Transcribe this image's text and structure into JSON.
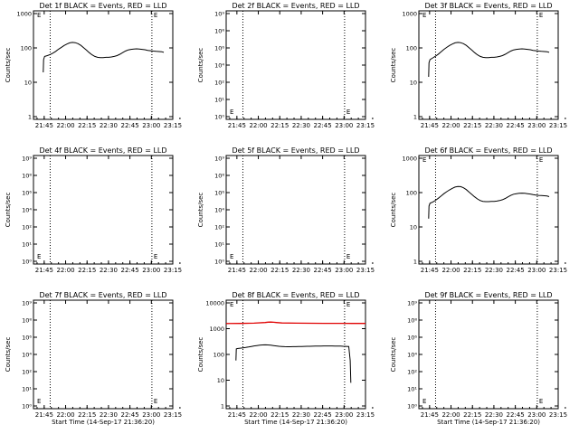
{
  "chart_data": [
    {
      "type": "line",
      "title": "Det 1f BLACK = Events, RED = LLD",
      "ylabel": "Counts/sec",
      "xlabel": "",
      "scale": "log",
      "ylim": [
        1,
        1000
      ],
      "ytick_labels": [
        "1000",
        "100",
        "10",
        "1"
      ],
      "xticks": [
        "21:45",
        "22:00",
        "22:15",
        "22:30",
        "22:45",
        "23:00",
        "23:15"
      ],
      "xlim": [
        0,
        100
      ],
      "markers": [
        12,
        85
      ],
      "tag": "E",
      "series": [
        {
          "color": "black",
          "x": [
            7,
            7.3,
            8,
            10,
            12,
            14,
            16,
            18,
            20,
            22,
            24,
            26,
            28,
            30,
            32,
            34,
            36,
            38,
            40,
            42,
            44,
            46,
            48,
            50,
            52,
            54,
            56,
            58,
            60,
            62,
            64,
            66,
            68,
            70,
            72,
            74,
            76,
            78,
            80,
            82,
            84,
            86,
            88,
            90,
            92,
            93.5
          ],
          "y": [
            20,
            45,
            55,
            58,
            62,
            68,
            76,
            87,
            98,
            110,
            121,
            130,
            134,
            132,
            124,
            111,
            96,
            82,
            70,
            61,
            55,
            52,
            51,
            51,
            52,
            52,
            53,
            55,
            58,
            63,
            70,
            77,
            83,
            86,
            88,
            89,
            88,
            86,
            84,
            81,
            79,
            77,
            76,
            75,
            74,
            71
          ]
        }
      ]
    },
    {
      "type": "line",
      "title": "Det 2f BLACK = Events, RED = LLD",
      "ylabel": "Counts/sec",
      "xlabel": "",
      "scale": "log",
      "ylim": [
        0.5,
        10000000000
      ],
      "ytick_labels": [
        "10⁹",
        "10⁸",
        "10⁶",
        "10⁴",
        "10²",
        "10¹",
        "10⁰"
      ],
      "xticks": [
        "21:45",
        "22:00",
        "22:15",
        "22:30",
        "22:45",
        "23:00",
        "23:15"
      ],
      "xlim": [
        0,
        100
      ],
      "markers": [
        12,
        85
      ],
      "tag": "E",
      "series": []
    },
    {
      "type": "line",
      "title": "Det 3f BLACK = Events, RED = LLD",
      "ylabel": "Counts/sec",
      "xlabel": "",
      "scale": "log",
      "ylim": [
        1,
        1000
      ],
      "ytick_labels": [
        "1000",
        "100",
        "10",
        "1"
      ],
      "xticks": [
        "21:45",
        "22:00",
        "22:15",
        "22:30",
        "22:45",
        "23:00",
        "23:15"
      ],
      "xlim": [
        0,
        100
      ],
      "markers": [
        12,
        85
      ],
      "tag": "E",
      "series": [
        {
          "color": "black",
          "x": [
            7,
            7.3,
            8,
            10,
            12,
            14,
            16,
            18,
            20,
            22,
            24,
            26,
            28,
            30,
            32,
            34,
            36,
            38,
            40,
            42,
            44,
            46,
            48,
            50,
            52,
            54,
            56,
            58,
            60,
            62,
            64,
            66,
            68,
            70,
            72,
            74,
            76,
            78,
            80,
            82,
            84,
            86,
            88,
            90,
            92,
            93.5
          ],
          "y": [
            15,
            37,
            45,
            50,
            56,
            64,
            74,
            86,
            98,
            110,
            121,
            130,
            134,
            132,
            124,
            111,
            96,
            82,
            70,
            61,
            55,
            52,
            51,
            51,
            52,
            52,
            53,
            55,
            58,
            63,
            70,
            77,
            83,
            86,
            88,
            89,
            88,
            86,
            84,
            81,
            79,
            77,
            76,
            75,
            74,
            71
          ]
        }
      ]
    },
    {
      "type": "line",
      "title": "Det 4f BLACK = Events, RED = LLD",
      "ylabel": "Counts/sec",
      "xlabel": "",
      "scale": "log",
      "ylim": [
        0.5,
        10000000000
      ],
      "ytick_labels": [
        "10⁹",
        "10⁸",
        "10⁶",
        "10⁴",
        "10²",
        "10¹",
        "10⁰"
      ],
      "xticks": [
        "21:45",
        "22:00",
        "22:15",
        "22:30",
        "22:45",
        "23:00",
        "23:15"
      ],
      "xlim": [
        0,
        100
      ],
      "markers": [
        12,
        85
      ],
      "tag": "E",
      "series": []
    },
    {
      "type": "line",
      "title": "Det 5f BLACK = Events, RED = LLD",
      "ylabel": "Counts/sec",
      "xlabel": "",
      "scale": "log",
      "ylim": [
        0.5,
        10000000000
      ],
      "ytick_labels": [
        "10⁹",
        "10⁸",
        "10⁶",
        "10⁴",
        "10²",
        "10¹",
        "10⁰"
      ],
      "xticks": [
        "21:45",
        "22:00",
        "22:15",
        "22:30",
        "22:45",
        "23:00",
        "23:15"
      ],
      "xlim": [
        0,
        100
      ],
      "markers": [
        12,
        85
      ],
      "tag": "E",
      "series": []
    },
    {
      "type": "line",
      "title": "Det 6f BLACK = Events, RED = LLD",
      "ylabel": "Counts/sec",
      "xlabel": "",
      "scale": "log",
      "ylim": [
        1,
        1000
      ],
      "ytick_labels": [
        "1000",
        "100",
        "10",
        "1"
      ],
      "xticks": [
        "21:45",
        "22:00",
        "22:15",
        "22:30",
        "22:45",
        "23:00",
        "23:15"
      ],
      "xlim": [
        0,
        100
      ],
      "markers": [
        12,
        85
      ],
      "tag": "E",
      "series": [
        {
          "color": "black",
          "x": [
            7,
            7.3,
            8,
            10,
            12,
            14,
            16,
            18,
            20,
            22,
            24,
            26,
            28,
            30,
            32,
            34,
            36,
            38,
            40,
            42,
            44,
            46,
            48,
            50,
            52,
            54,
            56,
            58,
            60,
            62,
            64,
            66,
            68,
            70,
            72,
            74,
            76,
            78,
            80,
            82,
            84,
            86,
            88,
            90,
            92,
            93.5
          ],
          "y": [
            18,
            40,
            48,
            52,
            58,
            66,
            76,
            88,
            100,
            112,
            124,
            134,
            140,
            138,
            128,
            114,
            98,
            84,
            72,
            63,
            57,
            54,
            53,
            53,
            54,
            54,
            55,
            57,
            60,
            65,
            72,
            79,
            85,
            88,
            90,
            91,
            90,
            88,
            86,
            83,
            81,
            79,
            78,
            77,
            76,
            73
          ]
        }
      ]
    },
    {
      "type": "line",
      "title": "Det 7f BLACK = Events, RED = LLD",
      "ylabel": "Counts/sec",
      "xlabel": "Start Time (14-Sep-17 21:36:20)",
      "scale": "log",
      "ylim": [
        0.5,
        10000000000
      ],
      "ytick_labels": [
        "10⁹",
        "10⁸",
        "10⁶",
        "10⁴",
        "10²",
        "10¹",
        "10⁰"
      ],
      "xticks": [
        "21:45",
        "22:00",
        "22:15",
        "22:30",
        "22:45",
        "23:00",
        "23:15"
      ],
      "xlim": [
        0,
        100
      ],
      "markers": [
        12,
        85
      ],
      "tag": "E",
      "series": []
    },
    {
      "type": "line",
      "title": "Det 8f BLACK = Events, RED = LLD",
      "ylabel": "Counts/sec",
      "xlabel": "Start Time (14-Sep-17 21:36:20)",
      "scale": "log",
      "ylim": [
        1,
        10000
      ],
      "ytick_labels": [
        "10000",
        "1000",
        "100",
        "10",
        "1"
      ],
      "xticks": [
        "21:45",
        "22:00",
        "22:15",
        "22:30",
        "22:45",
        "23:00",
        "23:15"
      ],
      "xlim": [
        0,
        100
      ],
      "markers": [
        12,
        85
      ],
      "tag": "E",
      "series": [
        {
          "color": "black",
          "x": [
            7,
            7.3,
            8,
            10,
            12,
            14,
            16,
            18,
            20,
            22,
            24,
            26,
            28,
            30,
            32,
            34,
            36,
            38,
            40,
            42,
            44,
            46,
            48,
            50,
            52,
            54,
            56,
            58,
            60,
            62,
            64,
            66,
            68,
            70,
            72,
            74,
            76,
            78,
            80,
            82,
            84,
            86,
            88,
            89,
            89.5
          ],
          "y": [
            60,
            160,
            165,
            170,
            175,
            180,
            188,
            196,
            205,
            212,
            218,
            224,
            226,
            224,
            218,
            212,
            206,
            200,
            196,
            194,
            192,
            192,
            193,
            194,
            195,
            196,
            198,
            199,
            200,
            201,
            202,
            203,
            204,
            205,
            206,
            206,
            205,
            204,
            203,
            202,
            200,
            198,
            196,
            60,
            9
          ]
        },
        {
          "color": "red",
          "x": [
            0,
            10,
            20,
            28,
            30,
            32,
            34,
            36,
            40,
            50,
            60,
            70,
            80,
            90,
            100
          ],
          "y": [
            1380,
            1390,
            1420,
            1500,
            1550,
            1560,
            1540,
            1500,
            1450,
            1420,
            1410,
            1400,
            1400,
            1395,
            1390
          ]
        }
      ]
    },
    {
      "type": "line",
      "title": "Det 9f BLACK = Events, RED = LLD",
      "ylabel": "Counts/sec",
      "xlabel": "Start Time (14-Sep-17 21:36:20)",
      "scale": "log",
      "ylim": [
        0.5,
        10000000000
      ],
      "ytick_labels": [
        "10⁹",
        "10⁸",
        "10⁶",
        "10⁴",
        "10²",
        "10¹",
        "10⁰"
      ],
      "xticks": [
        "21:45",
        "22:00",
        "22:15",
        "22:30",
        "22:45",
        "23:00",
        "23:15"
      ],
      "xlim": [
        0,
        100
      ],
      "markers": [
        12,
        85
      ],
      "tag": "E",
      "series": []
    }
  ]
}
